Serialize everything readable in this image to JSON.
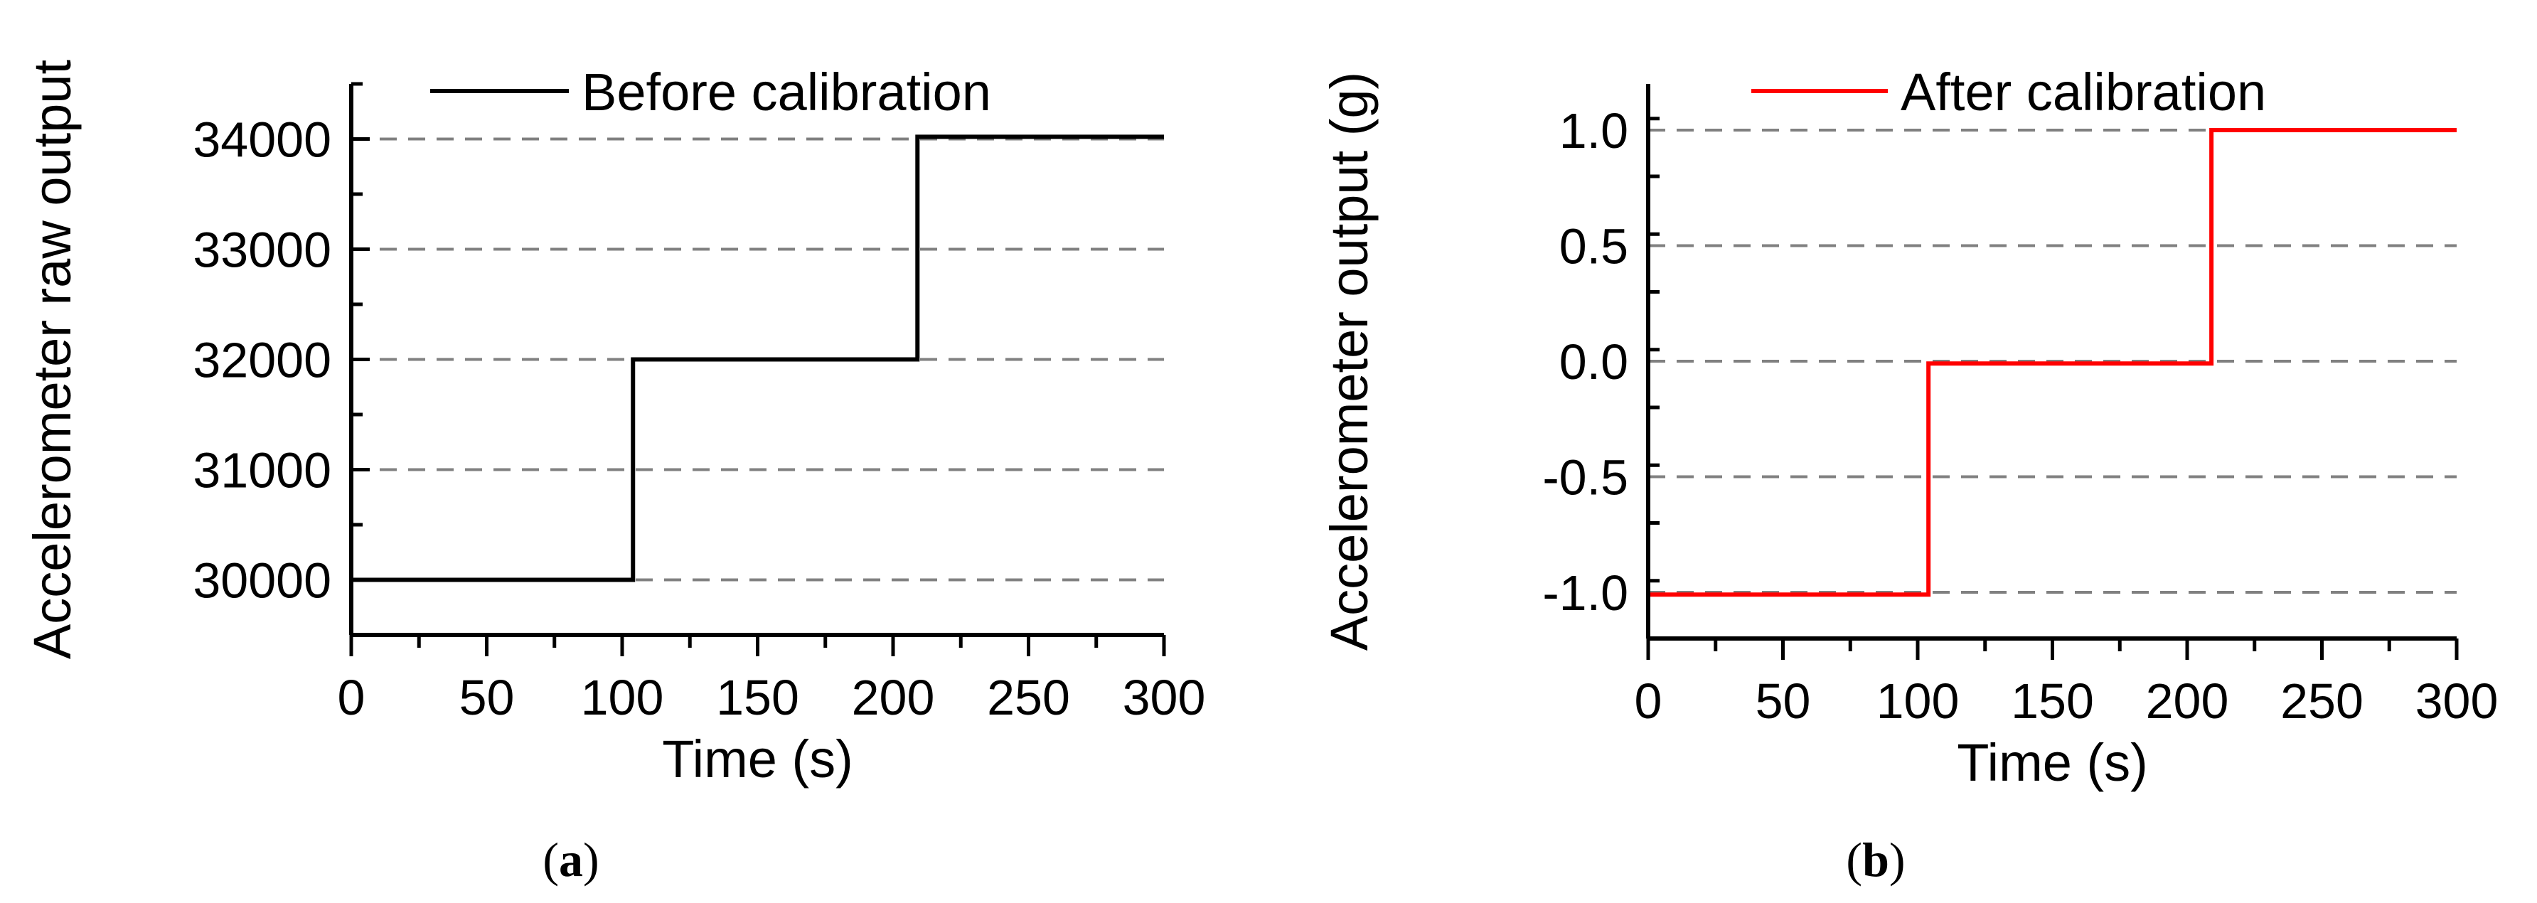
{
  "chart_data": [
    {
      "type": "line",
      "panel_label": "a",
      "xlabel": "Time (s)",
      "ylabel": "Accelerometer raw output",
      "xlim": [
        0,
        300
      ],
      "ylim": [
        29500,
        34500
      ],
      "xticks": [
        0,
        50,
        100,
        150,
        200,
        250,
        300
      ],
      "xtick_labels": [
        "0",
        "50",
        "100",
        "150",
        "200",
        "250",
        "300"
      ],
      "yticks": [
        30000,
        31000,
        32000,
        33000,
        34000
      ],
      "ytick_labels": [
        "30000",
        "31000",
        "32000",
        "33000",
        "34000"
      ],
      "grid": "horizontal dashed at major y ticks",
      "legend_position": "top",
      "color": "#000000",
      "series": [
        {
          "name": "Before calibration",
          "x": [
            0,
            104,
            104,
            209,
            209,
            300
          ],
          "y": [
            30000,
            30000,
            32000,
            32000,
            34020,
            34020
          ]
        }
      ]
    },
    {
      "type": "line",
      "panel_label": "b",
      "xlabel": "Time (s)",
      "ylabel": "Accelerometer output  (g)",
      "xlim": [
        0,
        300
      ],
      "ylim": [
        -1.2,
        1.2
      ],
      "xticks": [
        0,
        50,
        100,
        150,
        200,
        250,
        300
      ],
      "xtick_labels": [
        "0",
        "50",
        "100",
        "150",
        "200",
        "250",
        "300"
      ],
      "yticks": [
        -1.0,
        -0.5,
        0.0,
        0.5,
        1.0
      ],
      "ytick_labels": [
        "-1.0",
        "-0.5",
        "0.0",
        "0.5",
        "1.0"
      ],
      "grid": "horizontal dashed at major y ticks",
      "legend_position": "top",
      "color": "#ff0000",
      "series": [
        {
          "name": "After calibration",
          "x": [
            0,
            104,
            104,
            209,
            209,
            300
          ],
          "y": [
            -1.01,
            -1.01,
            -0.01,
            -0.01,
            1.0,
            1.0
          ]
        }
      ]
    }
  ]
}
